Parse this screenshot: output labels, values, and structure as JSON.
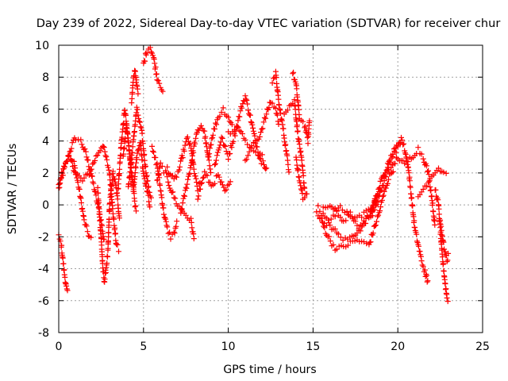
{
  "chart_data": {
    "type": "scatter",
    "title": "Day 239 of 2022, Sidereal Day-to-day VTEC variation (SDTVAR) for receiver chur",
    "xlabel": "GPS time / hours",
    "ylabel": "SDTVAR / TECUs",
    "xlim": [
      0,
      25
    ],
    "ylim": [
      -8,
      10
    ],
    "x_ticks": [
      0,
      5,
      10,
      15,
      20,
      25
    ],
    "y_ticks": [
      -8,
      -6,
      -4,
      -2,
      0,
      2,
      4,
      6,
      8,
      10
    ],
    "x_tick_labels": [
      "0",
      "5",
      "10",
      "15",
      "20",
      "25"
    ],
    "y_tick_labels": [
      "-8",
      "-6",
      "-4",
      "-2",
      "0",
      "2",
      "4",
      "6",
      "8",
      "10"
    ],
    "grid": true,
    "marker": "+",
    "series_color": "#ff0000",
    "series": [
      {
        "name": "SDTVAR",
        "tracks": [
          [
            [
              0.0,
              1.0
            ],
            [
              0.2,
              1.8
            ],
            [
              0.5,
              2.8
            ],
            [
              0.8,
              3.8
            ],
            [
              1.0,
              4.2
            ],
            [
              1.3,
              4.0
            ],
            [
              1.6,
              3.2
            ],
            [
              1.9,
              2.0
            ],
            [
              2.2,
              0.5
            ],
            [
              2.5,
              -1.0
            ],
            [
              2.7,
              -2.5
            ]
          ],
          [
            [
              0.0,
              1.3
            ],
            [
              0.3,
              2.5
            ],
            [
              0.6,
              3.0
            ],
            [
              0.9,
              2.6
            ],
            [
              1.2,
              1.0
            ],
            [
              1.5,
              -1.0
            ],
            [
              1.8,
              -2.0
            ],
            [
              2.0,
              -2.2
            ]
          ],
          [
            [
              0.0,
              -2.0
            ],
            [
              0.15,
              -2.5
            ],
            [
              0.3,
              -4.0
            ],
            [
              0.45,
              -5.2
            ],
            [
              0.55,
              -5.7
            ]
          ],
          [
            [
              0.7,
              2.8
            ],
            [
              1.0,
              2.0
            ],
            [
              1.4,
              1.5
            ],
            [
              1.8,
              2.0
            ],
            [
              2.2,
              3.0
            ],
            [
              2.6,
              3.8
            ],
            [
              3.0,
              2.0
            ],
            [
              3.2,
              -0.5
            ],
            [
              3.4,
              -2.5
            ],
            [
              3.6,
              -3.0
            ]
          ],
          [
            [
              2.3,
              1.0
            ],
            [
              2.5,
              -2.0
            ],
            [
              2.6,
              -4.0
            ],
            [
              2.7,
              -4.8
            ],
            [
              2.9,
              -3.0
            ],
            [
              3.0,
              0.0
            ],
            [
              3.2,
              2.0
            ],
            [
              3.4,
              1.0
            ],
            [
              3.6,
              -1.0
            ]
          ],
          [
            [
              3.5,
              1.0
            ],
            [
              3.7,
              4.0
            ],
            [
              3.9,
              6.0
            ],
            [
              4.1,
              4.0
            ],
            [
              4.3,
              2.0
            ],
            [
              4.5,
              0.0
            ],
            [
              4.6,
              -0.5
            ]
          ],
          [
            [
              3.8,
              3.0
            ],
            [
              4.0,
              5.0
            ],
            [
              4.2,
              3.0
            ],
            [
              4.4,
              1.0
            ],
            [
              4.6,
              3.0
            ],
            [
              4.8,
              4.0
            ],
            [
              5.0,
              2.0
            ],
            [
              5.2,
              1.0
            ],
            [
              5.4,
              -0.2
            ]
          ],
          [
            [
              4.1,
              1.0
            ],
            [
              4.4,
              4.0
            ],
            [
              4.6,
              6.0
            ],
            [
              4.9,
              4.5
            ],
            [
              5.1,
              2.5
            ],
            [
              5.3,
              1.0
            ],
            [
              5.5,
              0.3
            ]
          ],
          [
            [
              4.3,
              6.5
            ],
            [
              4.4,
              7.8
            ],
            [
              4.5,
              8.5
            ],
            [
              4.6,
              7.5
            ],
            [
              4.7,
              6.8
            ]
          ],
          [
            [
              5.0,
              8.8
            ],
            [
              5.2,
              9.7
            ],
            [
              5.4,
              9.9
            ],
            [
              5.6,
              9.2
            ],
            [
              5.8,
              8.0
            ],
            [
              6.0,
              7.5
            ],
            [
              6.2,
              7.0
            ]
          ],
          [
            [
              5.5,
              3.5
            ],
            [
              5.8,
              2.5
            ],
            [
              6.0,
              1.0
            ],
            [
              6.2,
              -0.5
            ],
            [
              6.4,
              -1.5
            ],
            [
              6.6,
              -2.0
            ],
            [
              6.8,
              -1.8
            ],
            [
              7.0,
              -1.0
            ]
          ],
          [
            [
              5.8,
              1.5
            ],
            [
              6.0,
              2.5
            ],
            [
              6.3,
              2.0
            ],
            [
              6.6,
              1.0
            ],
            [
              7.0,
              0.0
            ],
            [
              7.4,
              -0.5
            ],
            [
              7.8,
              -1.0
            ],
            [
              8.0,
              -2.3
            ]
          ],
          [
            [
              6.4,
              2.3
            ],
            [
              6.8,
              1.5
            ],
            [
              7.1,
              2.2
            ],
            [
              7.4,
              3.5
            ],
            [
              7.6,
              4.2
            ],
            [
              7.8,
              3.5
            ],
            [
              8.0,
              2.0
            ],
            [
              8.2,
              1.0
            ],
            [
              8.4,
              1.5
            ]
          ],
          [
            [
              7.2,
              -0.5
            ],
            [
              7.5,
              1.0
            ],
            [
              7.8,
              2.5
            ],
            [
              8.0,
              3.8
            ],
            [
              8.2,
              4.6
            ],
            [
              8.4,
              5.0
            ],
            [
              8.6,
              4.5
            ],
            [
              8.8,
              3.0
            ],
            [
              9.0,
              2.0
            ]
          ],
          [
            [
              8.2,
              0.5
            ],
            [
              8.6,
              2.0
            ],
            [
              9.0,
              1.2
            ],
            [
              9.4,
              1.8
            ],
            [
              9.8,
              0.8
            ],
            [
              10.2,
              1.5
            ]
          ],
          [
            [
              8.8,
              3.0
            ],
            [
              9.1,
              4.5
            ],
            [
              9.4,
              5.5
            ],
            [
              9.7,
              6.0
            ],
            [
              10.0,
              5.5
            ],
            [
              10.3,
              4.8
            ]
          ],
          [
            [
              9.2,
              2.5
            ],
            [
              9.6,
              4.2
            ],
            [
              10.0,
              3.0
            ],
            [
              10.4,
              4.5
            ],
            [
              10.8,
              6.2
            ],
            [
              11.0,
              6.8
            ],
            [
              11.3,
              5.5
            ],
            [
              11.6,
              4.0
            ],
            [
              12.0,
              2.5
            ]
          ],
          [
            [
              10.0,
              4.5
            ],
            [
              10.5,
              5.0
            ],
            [
              11.0,
              4.0
            ],
            [
              11.5,
              3.5
            ],
            [
              12.0,
              3.0
            ],
            [
              12.3,
              2.0
            ]
          ],
          [
            [
              11.0,
              2.8
            ],
            [
              11.4,
              3.6
            ],
            [
              11.8,
              4.2
            ],
            [
              12.2,
              5.5
            ],
            [
              12.5,
              6.5
            ],
            [
              12.8,
              6.0
            ],
            [
              13.0,
              5.0
            ]
          ],
          [
            [
              12.6,
              7.8
            ],
            [
              12.8,
              8.2
            ],
            [
              13.0,
              6.2
            ],
            [
              13.2,
              5.0
            ],
            [
              13.4,
              3.5
            ],
            [
              13.6,
              2.0
            ]
          ],
          [
            [
              13.3,
              5.8
            ],
            [
              13.6,
              6.2
            ],
            [
              13.9,
              6.5
            ],
            [
              14.1,
              4.5
            ],
            [
              14.3,
              3.0
            ],
            [
              14.5,
              1.0
            ],
            [
              14.7,
              0.5
            ]
          ],
          [
            [
              13.8,
              8.3
            ],
            [
              14.0,
              7.5
            ],
            [
              14.2,
              5.5
            ],
            [
              14.5,
              5.0
            ],
            [
              14.7,
              4.0
            ],
            [
              14.8,
              5.5
            ]
          ],
          [
            [
              14.0,
              3.0
            ],
            [
              14.2,
              1.5
            ],
            [
              14.4,
              0.5
            ],
            [
              14.6,
              0.3
            ]
          ],
          [
            [
              15.2,
              -0.5
            ],
            [
              15.5,
              -1.0
            ],
            [
              15.8,
              -1.8
            ],
            [
              16.1,
              -2.4
            ],
            [
              16.4,
              -2.8
            ],
            [
              16.8,
              -2.6
            ],
            [
              17.2,
              -2.4
            ],
            [
              17.6,
              -2.2
            ],
            [
              18.0,
              -2.4
            ],
            [
              18.3,
              -2.5
            ],
            [
              18.6,
              -1.5
            ],
            [
              18.9,
              -0.5
            ],
            [
              19.2,
              0.8
            ],
            [
              19.5,
              1.8
            ],
            [
              19.8,
              2.4
            ]
          ],
          [
            [
              15.3,
              -0.2
            ],
            [
              15.7,
              -0.8
            ],
            [
              16.1,
              -1.4
            ],
            [
              16.5,
              -1.9
            ],
            [
              16.9,
              -2.2
            ],
            [
              17.3,
              -2.0
            ],
            [
              17.7,
              -1.5
            ],
            [
              18.1,
              -1.0
            ],
            [
              18.5,
              -0.5
            ],
            [
              18.9,
              0.5
            ],
            [
              19.2,
              1.5
            ],
            [
              19.5,
              2.5
            ]
          ],
          [
            [
              15.4,
              -0.8
            ],
            [
              15.8,
              -1.2
            ],
            [
              16.2,
              -0.8
            ],
            [
              16.6,
              -0.2
            ],
            [
              17.0,
              -0.5
            ],
            [
              17.4,
              -1.0
            ],
            [
              17.8,
              -1.5
            ],
            [
              18.2,
              -0.8
            ],
            [
              18.6,
              0.0
            ],
            [
              19.0,
              1.2
            ]
          ],
          [
            [
              15.6,
              -0.3
            ],
            [
              16.0,
              0.0
            ],
            [
              16.4,
              -0.5
            ],
            [
              16.8,
              -1.0
            ],
            [
              17.2,
              -0.6
            ],
            [
              17.6,
              -0.9
            ],
            [
              18.0,
              -0.6
            ],
            [
              18.4,
              -0.2
            ],
            [
              18.8,
              0.5
            ]
          ],
          [
            [
              18.4,
              -0.6
            ],
            [
              18.8,
              0.8
            ],
            [
              19.2,
              2.0
            ],
            [
              19.6,
              3.0
            ],
            [
              20.0,
              3.6
            ],
            [
              20.3,
              3.8
            ]
          ],
          [
            [
              19.4,
              2.5
            ],
            [
              19.7,
              3.2
            ],
            [
              20.0,
              3.8
            ],
            [
              20.2,
              4.2
            ],
            [
              20.4,
              3.5
            ],
            [
              20.6,
              2.5
            ],
            [
              20.8,
              0.5
            ],
            [
              21.0,
              -1.5
            ],
            [
              21.2,
              -2.5
            ],
            [
              21.4,
              -3.5
            ],
            [
              21.6,
              -4.2
            ]
          ],
          [
            [
              19.6,
              2.2
            ],
            [
              20.0,
              3.0
            ],
            [
              20.4,
              2.5
            ],
            [
              20.8,
              3.0
            ],
            [
              21.2,
              3.5
            ],
            [
              21.5,
              3.0
            ],
            [
              21.8,
              2.0
            ],
            [
              22.0,
              0.5
            ],
            [
              22.2,
              -1.5
            ]
          ],
          [
            [
              21.2,
              0.5
            ],
            [
              21.5,
              1.0
            ],
            [
              21.8,
              1.5
            ],
            [
              22.1,
              2.0
            ],
            [
              22.4,
              2.3
            ],
            [
              22.7,
              2.0
            ],
            [
              23.0,
              2.2
            ]
          ],
          [
            [
              21.6,
              -4.2
            ],
            [
              21.7,
              -4.6
            ],
            [
              21.8,
              -5.0
            ]
          ],
          [
            [
              22.2,
              1.0
            ],
            [
              22.4,
              0.0
            ],
            [
              22.5,
              -1.5
            ],
            [
              22.6,
              -3.0
            ],
            [
              22.7,
              -4.0
            ],
            [
              22.8,
              -5.0
            ],
            [
              22.9,
              -5.8
            ],
            [
              23.0,
              -6.0
            ]
          ],
          [
            [
              22.5,
              -1.0
            ],
            [
              22.7,
              -2.5
            ],
            [
              22.9,
              -3.5
            ],
            [
              23.0,
              -3.0
            ]
          ]
        ]
      }
    ]
  }
}
